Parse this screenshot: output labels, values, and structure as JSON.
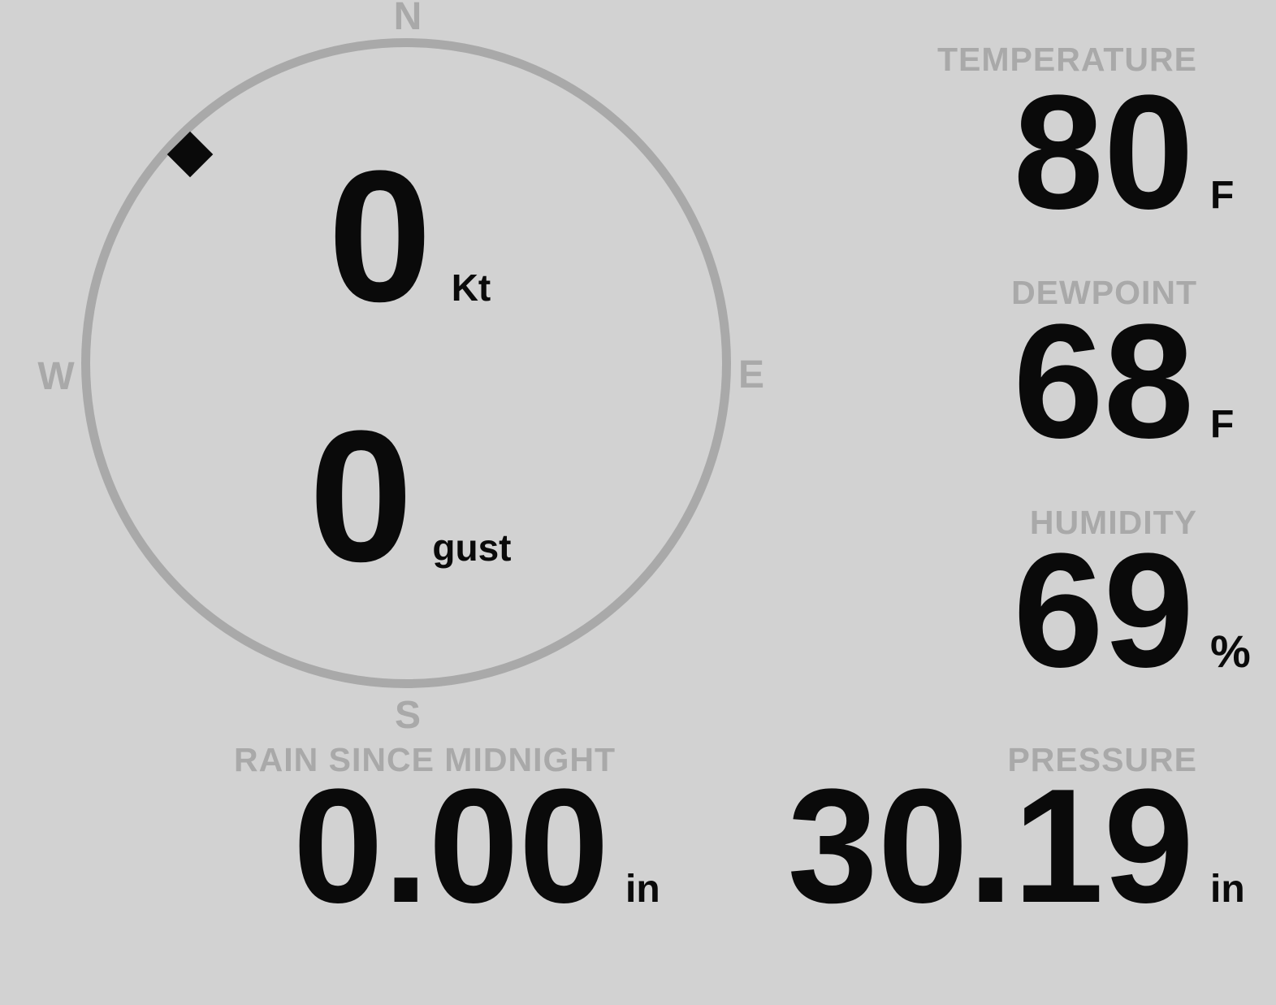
{
  "colors": {
    "background": "#d2d2d2",
    "muted_gray": "#a9a9a9",
    "value_black": "#0a0a0a"
  },
  "compass": {
    "cardinals": {
      "north": "N",
      "east": "E",
      "south": "S",
      "west": "W"
    },
    "wind_speed": {
      "value": "0",
      "unit": "Kt"
    },
    "wind_gust": {
      "value": "0",
      "unit": "gust"
    },
    "direction_marker": {
      "shape": "diamond",
      "bearing_deg": 314
    }
  },
  "readouts": {
    "temperature": {
      "label": "TEMPERATURE",
      "value": "80",
      "unit": "F"
    },
    "dewpoint": {
      "label": "DEWPOINT",
      "value": "68",
      "unit": "F"
    },
    "humidity": {
      "label": "HUMIDITY",
      "value": "69",
      "unit": "%"
    },
    "rain_since_midnight": {
      "label": "RAIN SINCE MIDNIGHT",
      "value": "0.00",
      "unit": "in"
    },
    "pressure": {
      "label": "PRESSURE",
      "value": "30.19",
      "unit": "in"
    }
  }
}
